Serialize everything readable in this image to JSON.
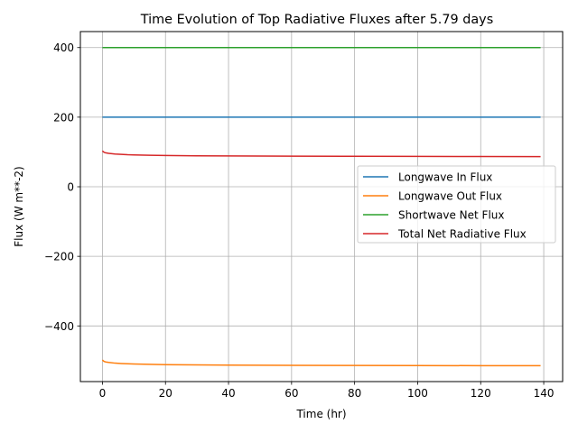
{
  "chart_data": {
    "type": "line",
    "title": "Time Evolution of Top Radiative Fluxes after 5.79 days",
    "xlabel": "Time (hr)",
    "ylabel": "Flux (W m**-2)",
    "xlim": [
      -7,
      146
    ],
    "ylim": [
      -560,
      446
    ],
    "xticks": [
      0,
      20,
      40,
      60,
      80,
      100,
      120,
      140
    ],
    "yticks": [
      -400,
      -200,
      0,
      200,
      400
    ],
    "xtick_labels": [
      "0",
      "20",
      "40",
      "60",
      "80",
      "100",
      "120",
      "140"
    ],
    "ytick_labels": [
      "−400",
      "−200",
      "0",
      "200",
      "400"
    ],
    "grid": true,
    "legend_position": "center-right",
    "series": [
      {
        "name": "Longwave In Flux",
        "color": "#1f77b4",
        "x": [
          0,
          139
        ],
        "y": [
          200,
          200
        ]
      },
      {
        "name": "Longwave Out Flux",
        "color": "#ff7f0e",
        "x": [
          0,
          0.5,
          1,
          2,
          4,
          6,
          8,
          10,
          15,
          20,
          30,
          40,
          60,
          80,
          100,
          120,
          139
        ],
        "y": [
          -498,
          -502,
          -503.5,
          -505,
          -507,
          -508,
          -508.8,
          -509.5,
          -510.5,
          -511.3,
          -512.2,
          -512.7,
          -513.3,
          -513.7,
          -514,
          -514.2,
          -514.4
        ]
      },
      {
        "name": "Shortwave Net Flux",
        "color": "#2ca02c",
        "x": [
          0,
          139
        ],
        "y": [
          400,
          400
        ]
      },
      {
        "name": "Total Net Radiative Flux",
        "color": "#d62728",
        "x": [
          0,
          0.5,
          1,
          2,
          4,
          6,
          8,
          10,
          15,
          20,
          30,
          40,
          60,
          80,
          100,
          120,
          139
        ],
        "y": [
          103,
          99,
          97.5,
          96,
          94,
          93,
          92,
          91.5,
          90.5,
          89.8,
          89,
          88.4,
          87.8,
          87.4,
          87.1,
          86.9,
          86.7
        ]
      }
    ]
  }
}
